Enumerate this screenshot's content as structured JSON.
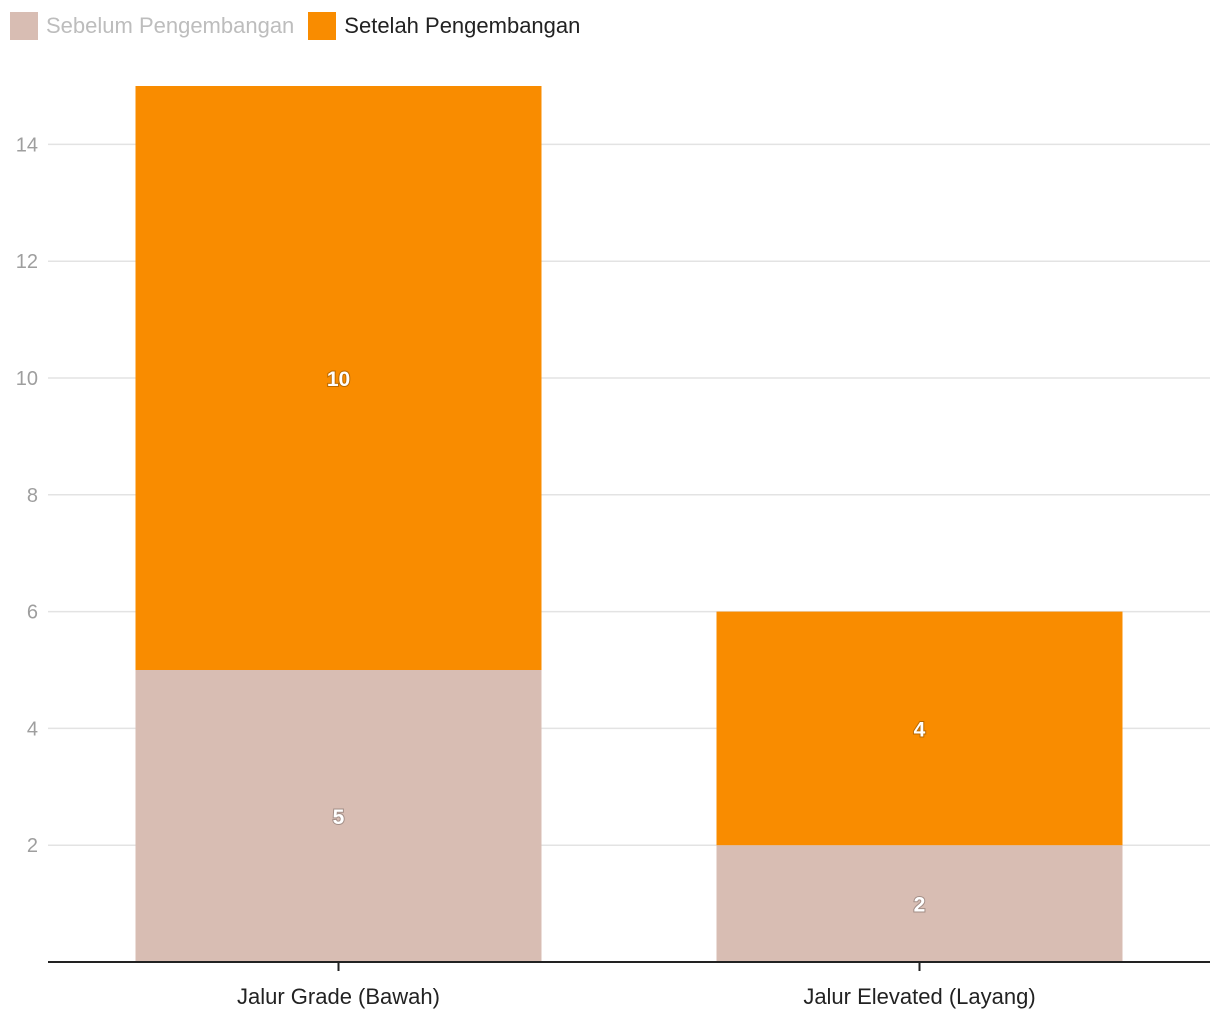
{
  "legend": {
    "items": [
      {
        "label": "Sebelum Pengembangan",
        "color": "#d8bdb3",
        "text_color": "#bdbdbd"
      },
      {
        "label": "Setelah Pengembangan",
        "color": "#f98c00",
        "text_color": "#222222"
      }
    ]
  },
  "chart_data": {
    "type": "bar",
    "stacked": true,
    "categories": [
      "Jalur Grade (Bawah)",
      "Jalur Elevated (Layang)"
    ],
    "series": [
      {
        "name": "Sebelum Pengembangan",
        "values": [
          5,
          2
        ],
        "color": "#d8bdb3"
      },
      {
        "name": "Setelah Pengembangan",
        "values": [
          10,
          4
        ],
        "color": "#f98c00"
      }
    ],
    "yticks": [
      2,
      4,
      6,
      8,
      10,
      12,
      14
    ],
    "ylim": [
      0,
      15
    ],
    "grid": true,
    "legend_position": "top-left",
    "title": "",
    "xlabel": "",
    "ylabel": ""
  }
}
